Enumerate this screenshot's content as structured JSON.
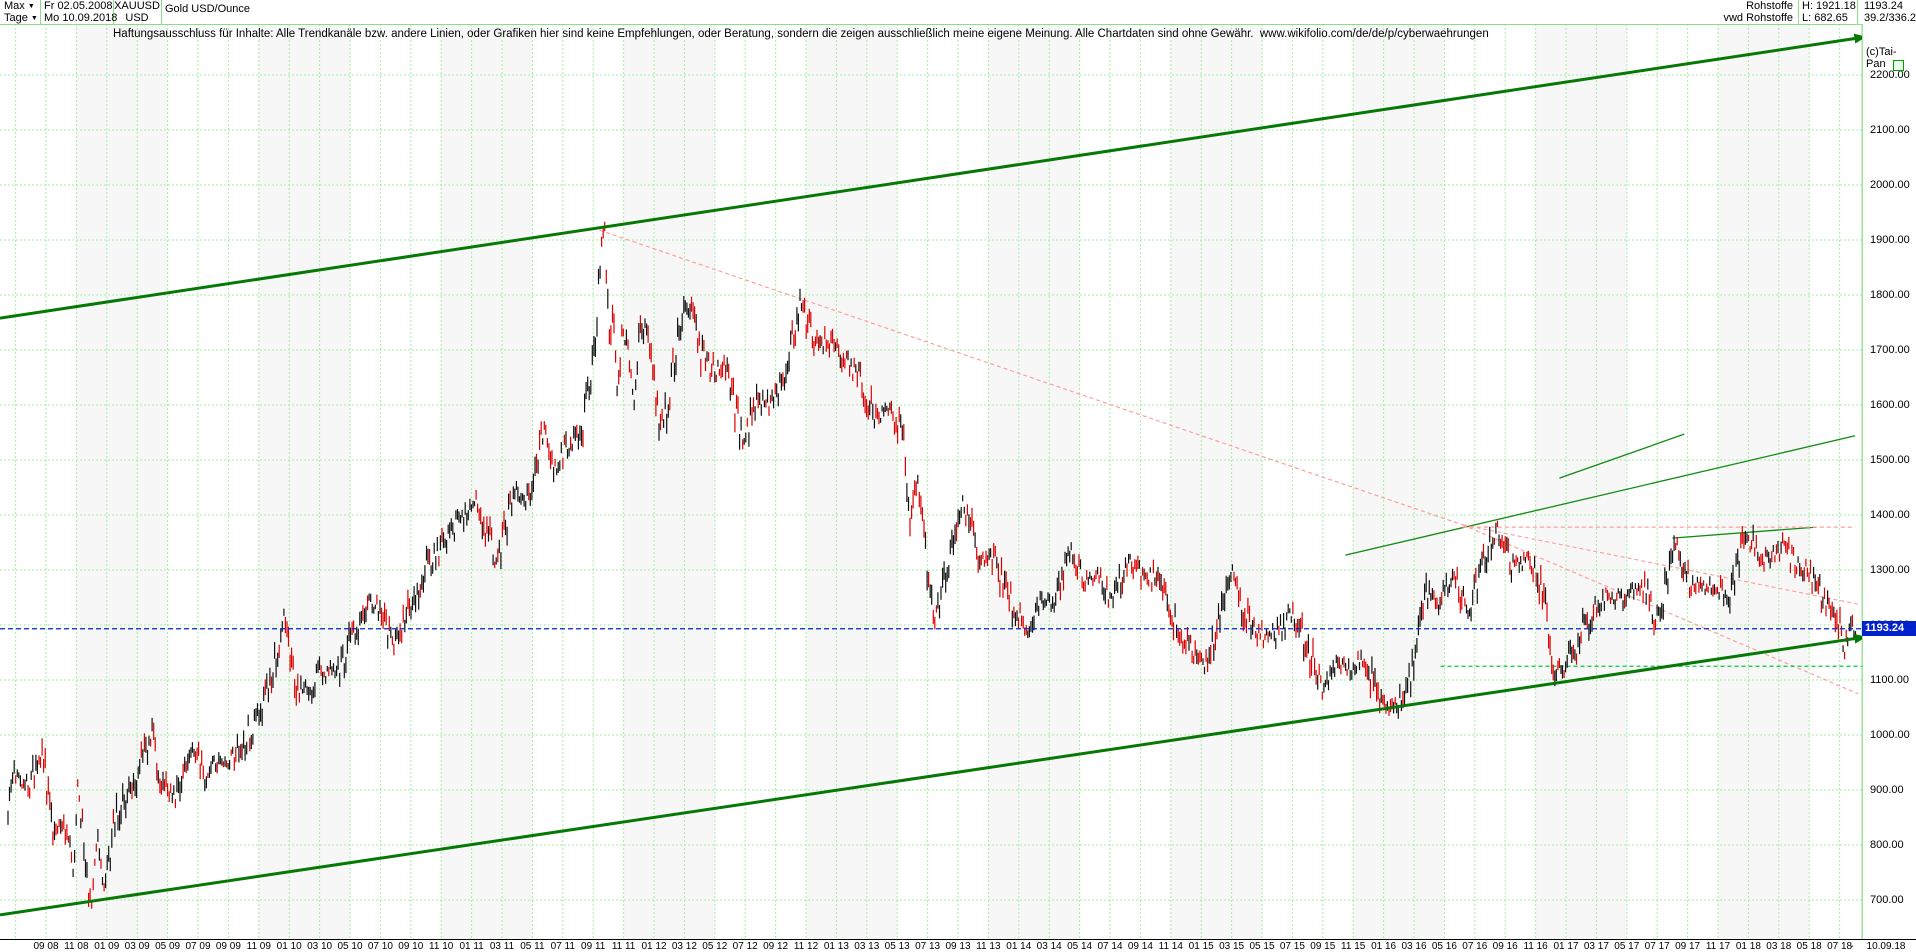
{
  "header": {
    "range_label": "Max",
    "period_label": "Tage",
    "date_from": "Fr 02.05.2008",
    "date_to": "Mo 10.09.2018",
    "symbol": "XAUUSD",
    "currency": "USD",
    "title": "Gold USD/Ounce",
    "category": "Rohstoffe",
    "source": "vwd Rohstoffe",
    "high": "H: 1921.18",
    "low": "L: 682.65",
    "last": "1193.24",
    "ratio": "39.2/336.2",
    "copyright": "(c)Tai-Pan"
  },
  "disclaimer": "Haftungsausschluss für Inhalte: Alle Trendkanäle bzw. andere Linien, oder Grafiken hier sind keine Empfehlungen, oder Beratung, sondern die zeigen ausschließlich meine eigene Meinung. Alle Chartdaten sind ohne Gewähr.  www.wikifolio.com/de/de/p/cyberwaehrungen",
  "chart_data": {
    "type": "line",
    "title": "Gold USD/Ounce (XAUUSD)",
    "instrument": "XAUUSD",
    "period": "02.05.2008 - 10.09.2018",
    "high": 1921.18,
    "low": 682.65,
    "last_price": 1193.24,
    "ylabel": "USD",
    "ylim": [
      640,
      2270
    ],
    "grid": true,
    "y_ticks": [
      "2200.00",
      "2100.00",
      "2000.00",
      "1900.00",
      "1800.00",
      "1700.00",
      "1600.00",
      "1500.00",
      "1400.00",
      "1300.00",
      "1200.00",
      "1100.00",
      "1000.00",
      "900.00",
      "800.00",
      "700.00"
    ],
    "y_tick_values": [
      2200,
      2100,
      2000,
      1900,
      1800,
      1700,
      1600,
      1500,
      1400,
      1300,
      1200,
      1100,
      1000,
      900,
      800,
      700
    ],
    "x_labels": [
      "09 08",
      "11 08",
      "01 09",
      "03 09",
      "05 09",
      "07 09",
      "09 09",
      "11 09",
      "01 10",
      "03 10",
      "05 10",
      "07 10",
      "09 10",
      "11 10",
      "01 11",
      "03 11",
      "05 11",
      "07 11",
      "09 11",
      "11 11",
      "01 12",
      "03 12",
      "05 12",
      "07 12",
      "09 12",
      "11 12",
      "01 13",
      "03 13",
      "05 13",
      "07 13",
      "09 13",
      "11 13",
      "01 14",
      "03 14",
      "05 14",
      "07 14",
      "09 14",
      "11 14",
      "01 15",
      "03 15",
      "05 15",
      "07 15",
      "09 15",
      "11 15",
      "01 16",
      "03 16",
      "05 16",
      "07 16",
      "09 16",
      "11 16",
      "01 17",
      "03 17",
      "05 17",
      "07 17",
      "09 17",
      "11 17",
      "01 18",
      "03 18",
      "05 18",
      "07 18"
    ],
    "x_end_dash": "-",
    "x_end_label": "10.09.18",
    "series": {
      "name": "Gold USD/Ounce monthly path (month-index from 2008-05, price USD)",
      "points": [
        [
          0,
          870
        ],
        [
          0.5,
          925
        ],
        [
          1,
          905
        ],
        [
          1.9,
          930
        ],
        [
          2.3,
          975
        ],
        [
          2.6,
          915
        ],
        [
          3,
          833
        ],
        [
          3.9,
          838
        ],
        [
          4.4,
          745
        ],
        [
          4.7,
          905
        ],
        [
          5.6,
          682
        ],
        [
          6,
          815
        ],
        [
          6.5,
          705
        ],
        [
          7,
          818
        ],
        [
          7.6,
          880
        ],
        [
          8.6,
          920
        ],
        [
          9.7,
          1000
        ],
        [
          10.2,
          925
        ],
        [
          11.2,
          885
        ],
        [
          12.1,
          960
        ],
        [
          12.6,
          975
        ],
        [
          13.2,
          930
        ],
        [
          14.2,
          950
        ],
        [
          15.2,
          950
        ],
        [
          16.2,
          1008
        ],
        [
          17.2,
          1045
        ],
        [
          18.6,
          1215
        ],
        [
          19.3,
          1085
        ],
        [
          20.2,
          1080
        ],
        [
          21.2,
          1118
        ],
        [
          22.2,
          1112
        ],
        [
          23.2,
          1180
        ],
        [
          24.4,
          1240
        ],
        [
          25.2,
          1232
        ],
        [
          25.9,
          1160
        ],
        [
          26.7,
          1215
        ],
        [
          27.2,
          1245
        ],
        [
          28.2,
          1308
        ],
        [
          29.2,
          1345
        ],
        [
          30.2,
          1385
        ],
        [
          31.6,
          1424
        ],
        [
          32.9,
          1312
        ],
        [
          34,
          1435
        ],
        [
          35.1,
          1440
        ],
        [
          36.1,
          1563
        ],
        [
          36.6,
          1478
        ],
        [
          37.6,
          1530
        ],
        [
          38.6,
          1550
        ],
        [
          39.1,
          1628
        ],
        [
          39.6,
          1750
        ],
        [
          39.9,
          1880
        ],
        [
          40.15,
          1920
        ],
        [
          40.45,
          1705
        ],
        [
          40.7,
          1770
        ],
        [
          41,
          1620
        ],
        [
          41.4,
          1740
        ],
        [
          41.8,
          1680
        ],
        [
          42.1,
          1600
        ],
        [
          42.6,
          1750
        ],
        [
          43.2,
          1720
        ],
        [
          43.8,
          1560
        ],
        [
          44.3,
          1590
        ],
        [
          45.2,
          1740
        ],
        [
          45.9,
          1788
        ],
        [
          46.5,
          1700
        ],
        [
          47.3,
          1670
        ],
        [
          48.3,
          1662
        ],
        [
          49.5,
          1530
        ],
        [
          50.3,
          1598
        ],
        [
          51.3,
          1614
        ],
        [
          52.3,
          1648
        ],
        [
          53.3,
          1787
        ],
        [
          54.3,
          1720
        ],
        [
          55.3,
          1714
        ],
        [
          56.3,
          1675
        ],
        [
          57.3,
          1660
        ],
        [
          58.4,
          1572
        ],
        [
          59.3,
          1594
        ],
        [
          60.3,
          1550
        ],
        [
          60.7,
          1355
        ],
        [
          61.2,
          1468
        ],
        [
          62.3,
          1200
        ],
        [
          63.3,
          1325
        ],
        [
          64.3,
          1420
        ],
        [
          65.3,
          1328
        ],
        [
          66.3,
          1322
        ],
        [
          67.3,
          1250
        ],
        [
          68.6,
          1190
        ],
        [
          69.4,
          1240
        ],
        [
          70.3,
          1245
        ],
        [
          71.5,
          1340
        ],
        [
          72.3,
          1285
        ],
        [
          73.3,
          1292
        ],
        [
          74.3,
          1250
        ],
        [
          75.4,
          1322
        ],
        [
          76.3,
          1290
        ],
        [
          77.3,
          1287
        ],
        [
          78.4,
          1208
        ],
        [
          79.3,
          1170
        ],
        [
          80.5,
          1132
        ],
        [
          81.3,
          1185
        ],
        [
          82.4,
          1298
        ],
        [
          83.3,
          1212
        ],
        [
          84.3,
          1183
        ],
        [
          85.3,
          1180
        ],
        [
          86.4,
          1224
        ],
        [
          87.3,
          1168
        ],
        [
          88.5,
          1082
        ],
        [
          89.3,
          1132
        ],
        [
          90.3,
          1114
        ],
        [
          91.3,
          1142
        ],
        [
          92.3,
          1062
        ],
        [
          93.5,
          1048
        ],
        [
          94.4,
          1112
        ],
        [
          95.5,
          1262
        ],
        [
          96.3,
          1234
        ],
        [
          97.3,
          1288
        ],
        [
          98.3,
          1212
        ],
        [
          99.3,
          1320
        ],
        [
          100.2,
          1374
        ],
        [
          101.3,
          1308
        ],
        [
          102.3,
          1316
        ],
        [
          103.3,
          1272
        ],
        [
          103.9,
          1128
        ],
        [
          104.6,
          1125
        ],
        [
          105.3,
          1148
        ],
        [
          106.3,
          1212
        ],
        [
          107.3,
          1250
        ],
        [
          108.3,
          1244
        ],
        [
          109.3,
          1266
        ],
        [
          110.3,
          1268
        ],
        [
          110.8,
          1212
        ],
        [
          111.3,
          1240
        ],
        [
          112.25,
          1352
        ],
        [
          113,
          1282
        ],
        [
          114.3,
          1268
        ],
        [
          115.3,
          1274
        ],
        [
          115.7,
          1238
        ],
        [
          116.3,
          1302
        ],
        [
          116.9,
          1362
        ],
        [
          118,
          1318
        ],
        [
          119,
          1324
        ],
        [
          119.5,
          1352
        ],
        [
          120,
          1315
        ],
        [
          121,
          1300
        ],
        [
          121.5,
          1282
        ],
        [
          122,
          1252
        ],
        [
          123,
          1222
        ],
        [
          123.6,
          1160
        ],
        [
          124,
          1201
        ],
        [
          124.35,
          1193.24
        ]
      ]
    },
    "trendlines": [
      {
        "name": "upper-channel",
        "m1": -0.54,
        "p1": 1758,
        "m2": 124.46,
        "p2": 2267,
        "color": "#067806",
        "width": 3,
        "dash": null,
        "arrow": true
      },
      {
        "name": "lower-channel",
        "m1": -0.54,
        "p1": 673,
        "m2": 124.46,
        "p2": 1176,
        "color": "#067806",
        "width": 3,
        "dash": null,
        "arrow": true
      },
      {
        "name": "rising-support-long",
        "m1": 90.0,
        "p1": 1327,
        "m2": 124.3,
        "p2": 1544,
        "color": "#128a12",
        "width": 1.3,
        "dash": null,
        "arrow": false
      },
      {
        "name": "rising-support-steep",
        "m1": 104.4,
        "p1": 1467,
        "m2": 112.8,
        "p2": 1547,
        "color": "#128a12",
        "width": 1.3,
        "dash": null,
        "arrow": false
      },
      {
        "name": "peak-resistance",
        "m1": 112.0,
        "p1": 1358,
        "m2": 121.7,
        "p2": 1378,
        "color": "#128a12",
        "width": 1.3,
        "dash": null,
        "arrow": false
      },
      {
        "name": "downtrend-from-2011-peak",
        "m1": 39.8,
        "p1": 1918,
        "m2": 97.9,
        "p2": 1382,
        "color": "#ff9e9e",
        "width": 1.2,
        "dash": "4 3",
        "arrow": false
      },
      {
        "name": "resistance-1378",
        "m1": 97.9,
        "p1": 1378,
        "m2": 124.3,
        "p2": 1378,
        "color": "#ff9e9e",
        "width": 1.2,
        "dash": "4 3",
        "arrow": false
      },
      {
        "name": "fan-lower",
        "m1": 97.9,
        "p1": 1382,
        "m2": 124.5,
        "p2": 1075,
        "color": "#ff9e9e",
        "width": 1.2,
        "dash": "4 3",
        "arrow": false
      },
      {
        "name": "fan-upper",
        "m1": 97.9,
        "p1": 1382,
        "m2": 124.5,
        "p2": 1238,
        "color": "#ff9e9e",
        "width": 1.2,
        "dash": "4 3",
        "arrow": false
      },
      {
        "name": "support-1125",
        "m1": 96.4,
        "p1": 1125,
        "m2": 124.75,
        "p2": 1125,
        "color": "#00cc44",
        "width": 1.3,
        "dash": "4 3",
        "arrow": false
      },
      {
        "name": "last-price-line",
        "m1": -0.54,
        "p1": 1193.24,
        "m2": 124.75,
        "p2": 1193.24,
        "color": "#0021cc",
        "width": 1.2,
        "dash": "5 3",
        "arrow": false
      }
    ]
  }
}
